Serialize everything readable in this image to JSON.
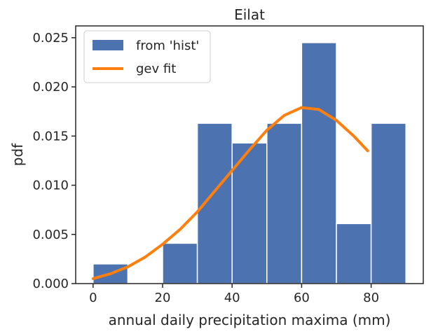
{
  "chart_data": {
    "type": "bar",
    "title": "Eilat",
    "xlabel": "annual daily precipitation maxima (mm)",
    "ylabel": "pdf",
    "xlim": [
      -5,
      95
    ],
    "ylim": [
      0,
      0.0262
    ],
    "xticks": [
      0,
      20,
      40,
      60,
      80
    ],
    "yticks": [
      0.0,
      0.005,
      0.01,
      0.015,
      0.02,
      0.025
    ],
    "ytick_labels": [
      "0.000",
      "0.005",
      "0.010",
      "0.015",
      "0.020",
      "0.025"
    ],
    "grid": false,
    "legend_position": "upper-left",
    "histogram": {
      "name": "from 'hist'",
      "color": "#4c72b0",
      "bins": [
        {
          "x0": 0,
          "x1": 10,
          "density": 0.002
        },
        {
          "x0": 10,
          "x1": 20,
          "density": 0.0
        },
        {
          "x0": 20,
          "x1": 30,
          "density": 0.0041
        },
        {
          "x0": 30,
          "x1": 40,
          "density": 0.0163
        },
        {
          "x0": 40,
          "x1": 50,
          "density": 0.0143
        },
        {
          "x0": 50,
          "x1": 60,
          "density": 0.0163
        },
        {
          "x0": 60,
          "x1": 70,
          "density": 0.0245
        },
        {
          "x0": 70,
          "x1": 80,
          "density": 0.0061
        },
        {
          "x0": 80,
          "x1": 90,
          "density": 0.0163
        }
      ]
    },
    "fit_line": {
      "name": "gev fit",
      "color": "#ff7f0e",
      "x": [
        0,
        5,
        10,
        15,
        20,
        25,
        30,
        35,
        40,
        45,
        50,
        55,
        60,
        65,
        70,
        75,
        79
      ],
      "y": [
        0.0005,
        0.001,
        0.0017,
        0.0027,
        0.004,
        0.0055,
        0.0073,
        0.0094,
        0.0115,
        0.0136,
        0.0156,
        0.0171,
        0.0179,
        0.0177,
        0.0166,
        0.015,
        0.0135
      ]
    }
  }
}
